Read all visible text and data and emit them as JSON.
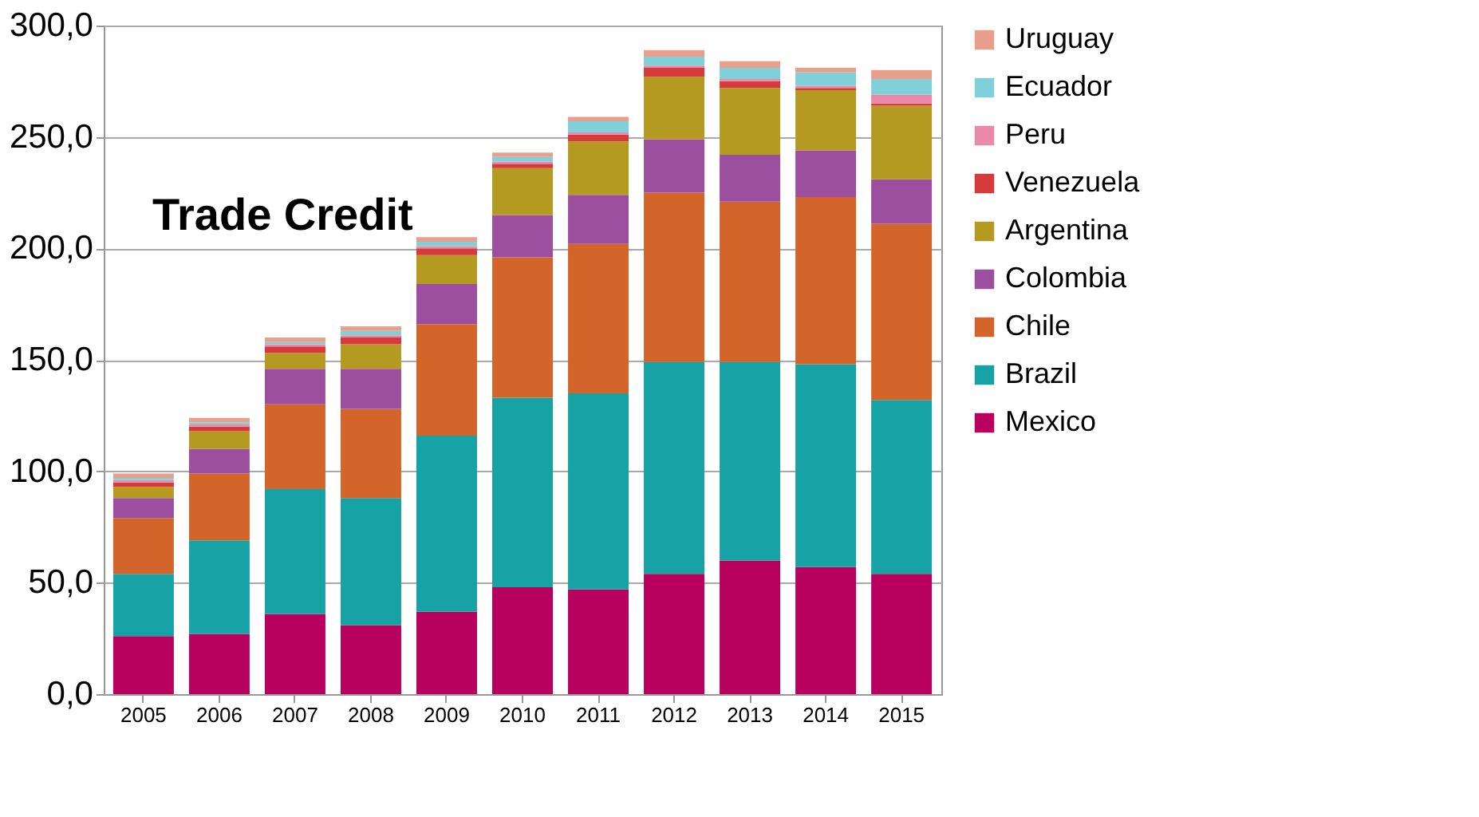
{
  "chart_data": {
    "type": "bar",
    "stacked": true,
    "title": "Trade Credit",
    "categories": [
      "2005",
      "2006",
      "2007",
      "2008",
      "2009",
      "2010",
      "2011",
      "2012",
      "2013",
      "2014",
      "2015"
    ],
    "series": [
      {
        "name": "Mexico",
        "color": "#b8005e",
        "values": [
          26,
          27,
          36,
          31,
          37,
          48,
          47,
          54,
          60,
          57,
          54
        ]
      },
      {
        "name": "Brazil",
        "color": "#17a2a6",
        "values": [
          28,
          42,
          56,
          57,
          79,
          85,
          88,
          95,
          89,
          91,
          78
        ]
      },
      {
        "name": "Chile",
        "color": "#d4652a",
        "values": [
          25,
          30,
          38,
          40,
          50,
          63,
          67,
          76,
          72,
          75,
          79
        ]
      },
      {
        "name": "Colombia",
        "color": "#9b4f9e",
        "values": [
          9,
          11,
          16,
          18,
          18,
          19,
          22,
          24,
          21,
          21,
          20
        ]
      },
      {
        "name": "Argentina",
        "color": "#b59a22",
        "values": [
          5,
          8,
          7,
          11,
          13,
          21,
          24,
          28,
          30,
          27,
          33
        ]
      },
      {
        "name": "Venezuela",
        "color": "#d63a3a",
        "values": [
          2,
          2,
          3,
          3,
          3,
          2,
          3,
          4,
          3,
          1,
          1
        ]
      },
      {
        "name": "Peru",
        "color": "#e88aa8",
        "values": [
          1,
          1,
          1,
          1,
          1,
          1,
          1,
          1,
          1,
          1,
          4
        ]
      },
      {
        "name": "Ecuador",
        "color": "#7fd0d8",
        "values": [
          1,
          1,
          1,
          2,
          2,
          2,
          5,
          4,
          5,
          6,
          7
        ]
      },
      {
        "name": "Uruguay",
        "color": "#e8a08c",
        "values": [
          2,
          2,
          2,
          2,
          2,
          2,
          2,
          3,
          3,
          2,
          4
        ]
      }
    ],
    "ylim": [
      0,
      300
    ],
    "yticks": [
      {
        "value": 0,
        "label": "0,0"
      },
      {
        "value": 50,
        "label": "50,0"
      },
      {
        "value": 100,
        "label": "100,0"
      },
      {
        "value": 150,
        "label": "150,0"
      },
      {
        "value": 200,
        "label": "200,0"
      },
      {
        "value": 250,
        "label": "250,0"
      },
      {
        "value": 300,
        "label": "300,0"
      }
    ],
    "grid": "y",
    "legend": "right"
  }
}
